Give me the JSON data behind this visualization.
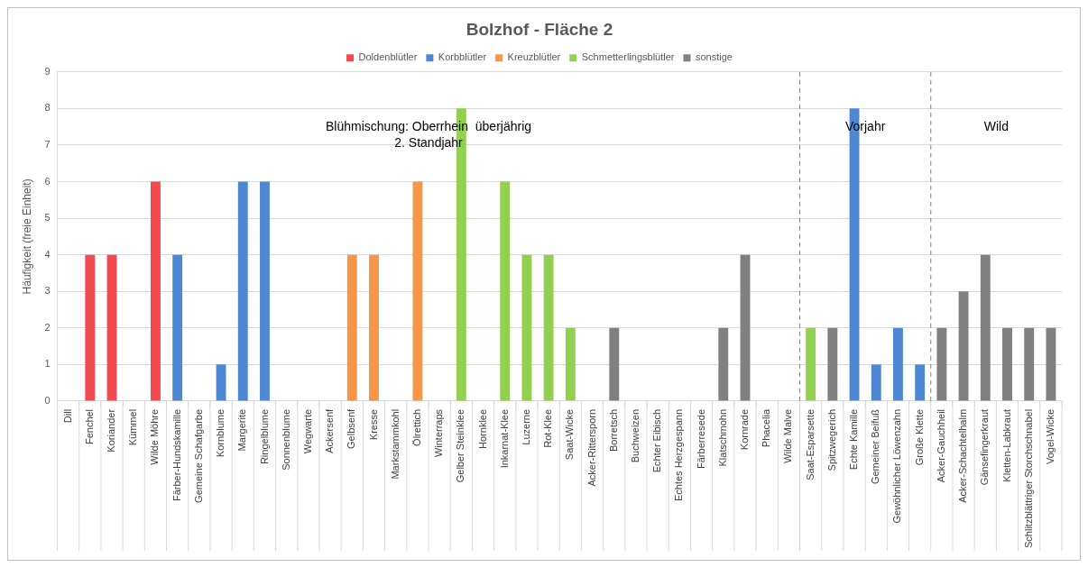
{
  "chart_data": {
    "type": "bar",
    "title": "Bolzhof - Fläche 2",
    "ylabel": "Häufigkeit (freie Einheit)",
    "categories": [
      "Dill",
      "Fenchel",
      "Koriander",
      "Kümmel",
      "Wilde Möhre",
      "Färber-Hundskamille",
      "Gemeine Schafgarbe",
      "Kornblume",
      "Margerite",
      "Ringelblume",
      "Sonnenblume",
      "Wegwarte",
      "Ackersenf",
      "Gelbsenf",
      "Kresse",
      "Markstammkohl",
      "Ölrettich",
      "Winterraps",
      "Gelber Steinklee",
      "Hornklee",
      "Inkarnat-Klee",
      "Luzerne",
      "Rot-Klee",
      "Saat-Wicke",
      "Acker-Rittersporn",
      "Borretsch",
      "Buchweizen",
      "Echter Eibisch",
      "Echtes Herzgespann",
      "Färberresede",
      "Klatschmohn",
      "Kornrade",
      "Phacelia",
      "Wilde Malve",
      "Saat-Esparsette",
      "Spitzwegerich",
      "Echte Kamille",
      "Gemeiner Beifuß",
      "Gewöhnlicher Löwenzahn",
      "Große Klette",
      "Acker-Gauchheil",
      "Acker-Schachtelhalm",
      "Gänsefingerkraut",
      "Kletten-Labkraut",
      "Schlitzblättriger Storchschnabel",
      "Vogel-Wicke"
    ],
    "series": [
      {
        "name": "Doldenblütler",
        "color": "#f24a4f",
        "values": [
          null,
          4,
          4,
          null,
          6,
          null,
          null,
          null,
          null,
          null,
          null,
          null,
          null,
          null,
          null,
          null,
          null,
          null,
          null,
          null,
          null,
          null,
          null,
          null,
          null,
          null,
          null,
          null,
          null,
          null,
          null,
          null,
          null,
          null,
          null,
          null,
          null,
          null,
          null,
          null,
          null,
          null,
          null,
          null,
          null,
          null
        ]
      },
      {
        "name": "Korbblütler",
        "color": "#4e88d4",
        "values": [
          null,
          null,
          null,
          null,
          null,
          4,
          null,
          1,
          6,
          6,
          null,
          null,
          null,
          null,
          null,
          null,
          null,
          null,
          null,
          null,
          null,
          null,
          null,
          null,
          null,
          null,
          null,
          null,
          null,
          null,
          null,
          null,
          null,
          null,
          null,
          null,
          8,
          1,
          2,
          1,
          null,
          null,
          null,
          null,
          null,
          null
        ]
      },
      {
        "name": "Kreuzblütler",
        "color": "#f79646",
        "values": [
          null,
          null,
          null,
          null,
          null,
          null,
          null,
          null,
          null,
          null,
          null,
          null,
          null,
          4,
          4,
          null,
          6,
          null,
          null,
          null,
          null,
          null,
          null,
          null,
          null,
          null,
          null,
          null,
          null,
          null,
          null,
          null,
          null,
          null,
          null,
          null,
          null,
          null,
          null,
          null,
          null,
          null,
          null,
          null,
          null,
          null
        ]
      },
      {
        "name": "Schmetterlingsblütler",
        "color": "#92d050",
        "values": [
          null,
          null,
          null,
          null,
          null,
          null,
          null,
          null,
          null,
          null,
          null,
          null,
          null,
          null,
          null,
          null,
          null,
          null,
          8,
          null,
          6,
          4,
          4,
          2,
          null,
          null,
          null,
          null,
          null,
          null,
          null,
          null,
          null,
          null,
          2,
          null,
          null,
          null,
          null,
          null,
          null,
          null,
          null,
          null,
          null,
          null
        ]
      },
      {
        "name": "sonstige",
        "color": "#808080",
        "values": [
          null,
          null,
          null,
          null,
          null,
          null,
          null,
          null,
          null,
          null,
          null,
          null,
          null,
          null,
          null,
          null,
          null,
          null,
          null,
          null,
          null,
          null,
          null,
          null,
          null,
          2,
          null,
          null,
          null,
          null,
          2,
          4,
          null,
          null,
          null,
          2,
          null,
          null,
          null,
          null,
          2,
          3,
          4,
          2,
          2,
          2
        ]
      }
    ],
    "ylim": [
      0,
      9
    ],
    "yticks": [
      0,
      1,
      2,
      3,
      4,
      5,
      6,
      7,
      8,
      9
    ],
    "grid": "y",
    "legend": "top",
    "annotations": [
      "Blühmischung: Oberrhein  überjährig\n2. Standjahr",
      "Vorjahr",
      "Wild"
    ]
  }
}
